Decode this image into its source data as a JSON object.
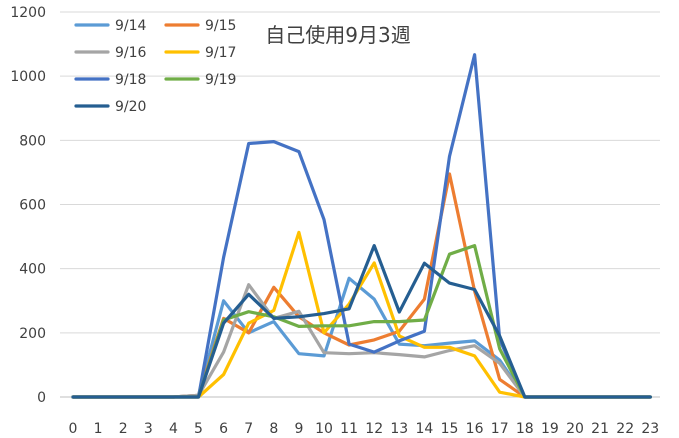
{
  "chart_data": {
    "type": "line",
    "title": "自己使用9月3週",
    "xlabel": "",
    "ylabel": "",
    "x": [
      0,
      1,
      2,
      3,
      4,
      5,
      6,
      7,
      8,
      9,
      10,
      11,
      12,
      13,
      14,
      15,
      16,
      17,
      18,
      19,
      20,
      21,
      22,
      23
    ],
    "ylim": [
      0,
      1200
    ],
    "yticks": [
      0,
      200,
      400,
      600,
      800,
      1000,
      1200
    ],
    "grid": "horizontal",
    "legend_placement": "top-left",
    "series": [
      {
        "name": "9/14",
        "color": "#5B9BD5",
        "values": [
          0,
          0,
          0,
          0,
          0,
          5,
          300,
          200,
          235,
          135,
          128,
          370,
          305,
          165,
          160,
          168,
          175,
          115,
          0,
          0,
          0,
          0,
          0,
          0
        ]
      },
      {
        "name": "9/15",
        "color": "#ED7D31",
        "values": [
          0,
          0,
          0,
          0,
          0,
          5,
          245,
          200,
          342,
          250,
          200,
          162,
          178,
          205,
          305,
          695,
          330,
          55,
          0,
          0,
          0,
          0,
          0,
          0
        ]
      },
      {
        "name": "9/16",
        "color": "#A5A5A5",
        "values": [
          0,
          0,
          0,
          0,
          0,
          5,
          140,
          350,
          245,
          267,
          138,
          135,
          138,
          132,
          125,
          145,
          160,
          105,
          0,
          0,
          0,
          0,
          0,
          0
        ]
      },
      {
        "name": "9/17",
        "color": "#FFC000",
        "values": [
          0,
          0,
          0,
          0,
          0,
          0,
          70,
          230,
          270,
          513,
          200,
          290,
          418,
          190,
          155,
          155,
          128,
          15,
          0,
          0,
          0,
          0,
          0,
          0
        ]
      },
      {
        "name": "9/18",
        "color": "#4472C4",
        "values": [
          0,
          0,
          0,
          0,
          0,
          0,
          435,
          790,
          796,
          765,
          553,
          165,
          140,
          175,
          205,
          750,
          1067,
          180,
          0,
          0,
          0,
          0,
          0,
          0
        ]
      },
      {
        "name": "9/19",
        "color": "#70AD47",
        "values": [
          0,
          0,
          0,
          0,
          0,
          0,
          240,
          266,
          250,
          220,
          222,
          222,
          235,
          235,
          240,
          445,
          472,
          150,
          0,
          0,
          0,
          0,
          0,
          0
        ]
      },
      {
        "name": "9/20",
        "color": "#255E91",
        "values": [
          0,
          0,
          0,
          0,
          0,
          0,
          230,
          320,
          245,
          250,
          260,
          275,
          472,
          265,
          417,
          355,
          335,
          190,
          0,
          0,
          0,
          0,
          0,
          0
        ]
      }
    ]
  }
}
